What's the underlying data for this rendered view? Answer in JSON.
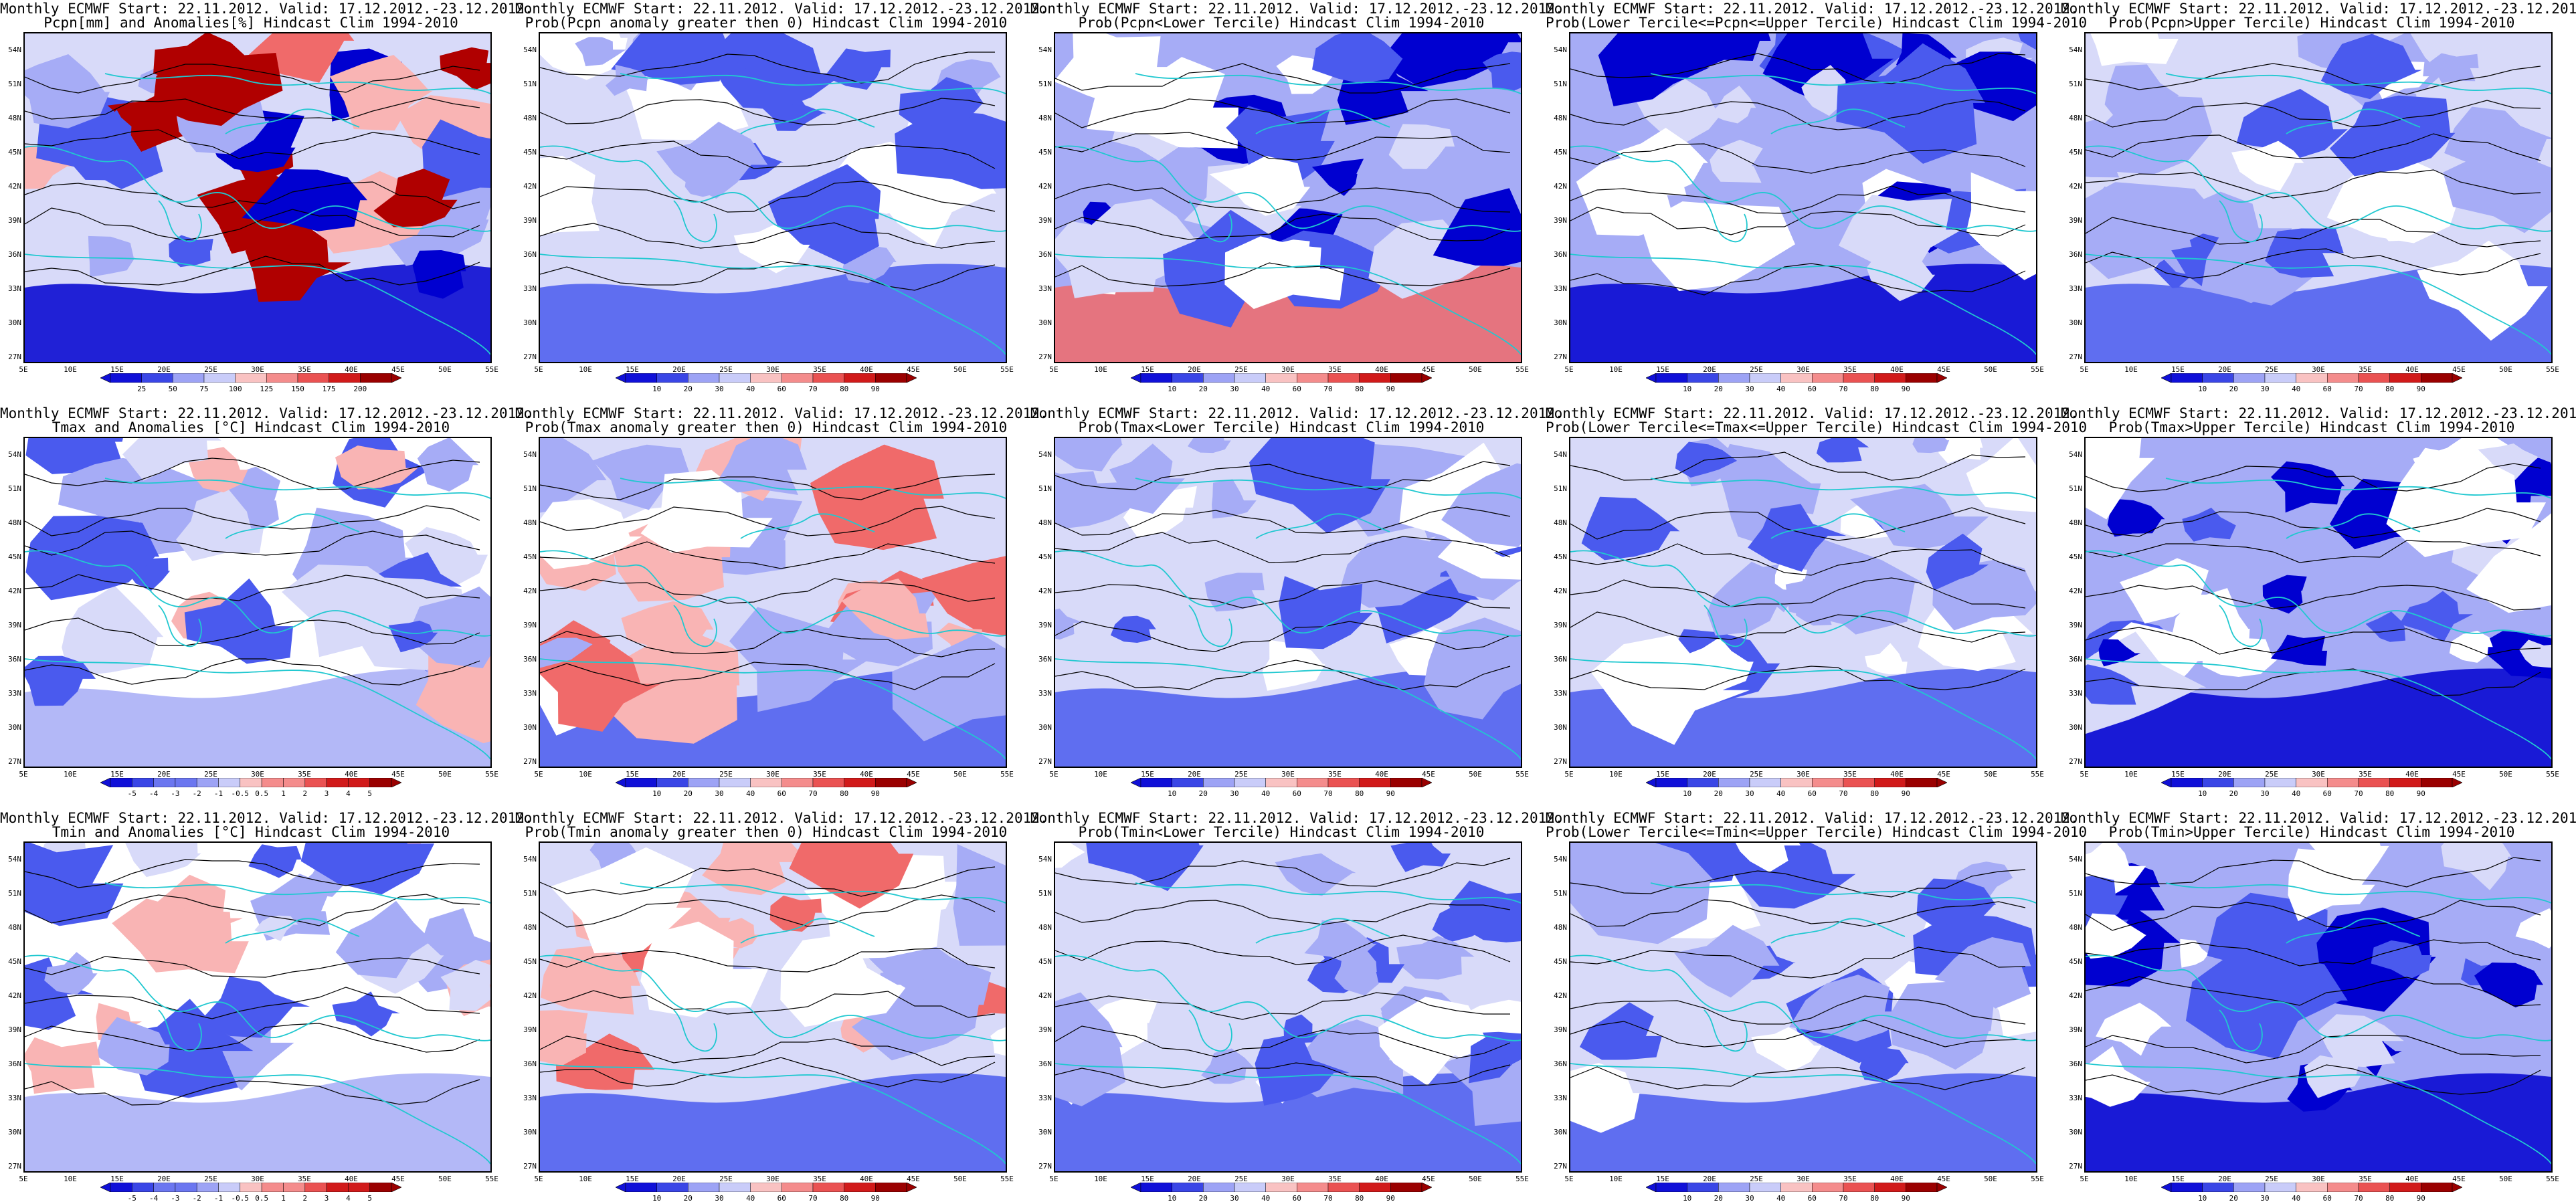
{
  "panels": [
    {
      "l1": "Monthly ECMWF Start: 22.11.2012. Valid: 17.12.2012.-23.12.2012.",
      "l2": "Pcpn[mm] and Anomalies[%] Hindcast Clim 1994-2010",
      "scheme": "anomPcpn",
      "colorbar": [
        "25",
        "50",
        "75",
        "100",
        "125",
        "150",
        "175",
        "200"
      ]
    },
    {
      "l1": "Monthly ECMWF Start: 22.11.2012. Valid: 17.12.2012.-23.12.2012.",
      "l2": "Prob(Pcpn anomaly greater then 0) Hindcast Clim 1994-2010",
      "scheme": "probBlue",
      "colorbar": [
        "10",
        "20",
        "30",
        "40",
        "60",
        "70",
        "80",
        "90"
      ]
    },
    {
      "l1": "Monthly ECMWF Start: 22.11.2012. Valid: 17.12.2012.-23.12.2012.",
      "l2": "Prob(Pcpn<Lower Tercile) Hindcast Clim 1994-2010",
      "scheme": "probMixed",
      "colorbar": [
        "10",
        "20",
        "30",
        "40",
        "60",
        "70",
        "80",
        "90"
      ]
    },
    {
      "l1": "Monthly ECMWF Start: 22.11.2012. Valid: 17.12.2012.-23.12.2012.",
      "l2": "Prob(Lower Tercile<=Pcpn<=Upper Tercile) Hindcast Clim 1994-2010",
      "scheme": "probDark",
      "colorbar": [
        "10",
        "20",
        "30",
        "40",
        "60",
        "70",
        "80",
        "90"
      ]
    },
    {
      "l1": "Monthly ECMWF Start: 22.11.2012. Valid: 17.12.2012.-23.12.2012.",
      "l2": "Prob(Pcpn>Upper Tercile) Hindcast Clim 1994-2010",
      "scheme": "probBlue",
      "colorbar": [
        "10",
        "20",
        "30",
        "40",
        "60",
        "70",
        "80",
        "90"
      ]
    },
    {
      "l1": "Monthly ECMWF Start: 22.11.2012. Valid: 17.12.2012.-23.12.2012.",
      "l2": "Tmax and Anomalies [°C] Hindcast Clim 1994-2010",
      "scheme": "anomT",
      "colorbar": [
        "-5",
        "-4",
        "-3",
        "-2",
        "-1",
        "-0.5",
        "0.5",
        "1",
        "2",
        "3",
        "4",
        "5"
      ]
    },
    {
      "l1": "Monthly ECMWF Start: 22.11.2012. Valid: 17.12.2012.-23.12.2012.",
      "l2": "Prob(Tmax anomaly greater then 0) Hindcast Clim 1994-2010",
      "scheme": "probRed",
      "colorbar": [
        "10",
        "20",
        "30",
        "40",
        "60",
        "70",
        "80",
        "90"
      ]
    },
    {
      "l1": "Monthly ECMWF Start: 22.11.2012. Valid: 17.12.2012.-23.12.2012.",
      "l2": "Prob(Tmax<Lower Tercile) Hindcast Clim 1994-2010",
      "scheme": "probBlue",
      "colorbar": [
        "10",
        "20",
        "30",
        "40",
        "60",
        "70",
        "80",
        "90"
      ]
    },
    {
      "l1": "Monthly ECMWF Start: 22.11.2012. Valid: 17.12.2012.-23.12.2012.",
      "l2": "Prob(Lower Tercile<=Tmax<=Upper Tercile) Hindcast Clim 1994-2010",
      "scheme": "probBlue",
      "colorbar": [
        "10",
        "20",
        "30",
        "40",
        "60",
        "70",
        "80",
        "90"
      ]
    },
    {
      "l1": "Monthly ECMWF Start: 22.11.2012. Valid: 17.12.2012.-23.12.2012.",
      "l2": "Prob(Tmax>Upper Tercile) Hindcast Clim 1994-2010",
      "scheme": "probDark",
      "colorbar": [
        "10",
        "20",
        "30",
        "40",
        "60",
        "70",
        "80",
        "90"
      ]
    },
    {
      "l1": "Monthly ECMWF Start: 22.11.2012. Valid: 17.12.2012.-23.12.2012.",
      "l2": "Tmin and Anomalies [°C] Hindcast Clim 1994-2010",
      "scheme": "anomT",
      "colorbar": [
        "-5",
        "-4",
        "-3",
        "-2",
        "-1",
        "-0.5",
        "0.5",
        "1",
        "2",
        "3",
        "4",
        "5"
      ]
    },
    {
      "l1": "Monthly ECMWF Start: 22.11.2012. Valid: 17.12.2012.-23.12.2012.",
      "l2": "Prob(Tmin anomaly greater then 0) Hindcast Clim 1994-2010",
      "scheme": "probRed",
      "colorbar": [
        "10",
        "20",
        "30",
        "40",
        "60",
        "70",
        "80",
        "90"
      ]
    },
    {
      "l1": "Monthly ECMWF Start: 22.11.2012. Valid: 17.12.2012.-23.12.2012.",
      "l2": "Prob(Tmin<Lower Tercile) Hindcast Clim 1994-2010",
      "scheme": "probBlue",
      "colorbar": [
        "10",
        "20",
        "30",
        "40",
        "60",
        "70",
        "80",
        "90"
      ]
    },
    {
      "l1": "Monthly ECMWF Start: 22.11.2012. Valid: 17.12.2012.-23.12.2012.",
      "l2": "Prob(Lower Tercile<=Tmin<=Upper Tercile) Hindcast Clim 1994-2010",
      "scheme": "probBlue",
      "colorbar": [
        "10",
        "20",
        "30",
        "40",
        "60",
        "70",
        "80",
        "90"
      ]
    },
    {
      "l1": "Monthly ECMWF Start: 22.11.2012. Valid: 17.12.2012.-23.12.2012.",
      "l2": "Prob(Tmin>Upper Tercile) Hindcast Clim 1994-2010",
      "scheme": "probDark",
      "colorbar": [
        "10",
        "20",
        "30",
        "40",
        "60",
        "70",
        "80",
        "90"
      ]
    }
  ],
  "lat_labels": [
    "54N",
    "51N",
    "48N",
    "45N",
    "42N",
    "39N",
    "36N",
    "33N",
    "30N",
    "27N"
  ],
  "lon_labels": [
    "5E",
    "10E",
    "15E",
    "20E",
    "25E",
    "30E",
    "35E",
    "40E",
    "45E",
    "50E",
    "55E"
  ],
  "colors": {
    "coast": "#20c8d0",
    "contour": "#000000",
    "blue_dark": "#0000d0",
    "blue_mid": "#4a5aee",
    "blue_light": "#a6acf6",
    "blue_pale": "#d8daf9",
    "red_dark": "#b00000",
    "red_mid": "#f06a6a",
    "red_light": "#f9b4b4"
  }
}
